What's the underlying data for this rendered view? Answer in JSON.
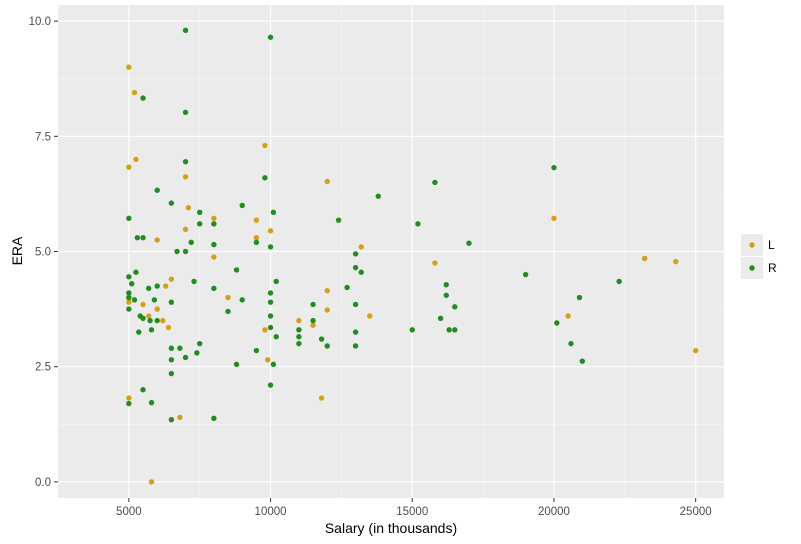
{
  "chart_data": {
    "type": "scatter",
    "xlabel": "Salary (in thousands)",
    "ylabel": "ERA",
    "xlim": [
      2500,
      26000
    ],
    "ylim": [
      -0.35,
      10.35
    ],
    "x_ticks": [
      5000,
      10000,
      15000,
      20000,
      25000
    ],
    "x_tick_labels": [
      "5000",
      "10000",
      "15000",
      "20000",
      "25000"
    ],
    "y_ticks": [
      0,
      2.5,
      5,
      7.5,
      10
    ],
    "y_tick_labels": [
      "0.0",
      "2.5",
      "5.0",
      "7.5",
      "10.0"
    ],
    "grid": true,
    "legend_position": "right",
    "series": [
      {
        "name": "L",
        "color": "#d4a017",
        "points": [
          [
            5000,
            9.0
          ],
          [
            5000,
            6.83
          ],
          [
            5000,
            4.0
          ],
          [
            5000,
            3.9
          ],
          [
            5000,
            1.82
          ],
          [
            5200,
            8.45
          ],
          [
            5250,
            7.0
          ],
          [
            5500,
            3.85
          ],
          [
            5700,
            3.6
          ],
          [
            5800,
            0.0
          ],
          [
            6000,
            5.25
          ],
          [
            6000,
            3.75
          ],
          [
            6200,
            3.5
          ],
          [
            6300,
            4.25
          ],
          [
            6400,
            3.35
          ],
          [
            6500,
            4.4
          ],
          [
            6800,
            1.4
          ],
          [
            7000,
            6.62
          ],
          [
            7000,
            5.48
          ],
          [
            7100,
            5.95
          ],
          [
            8000,
            5.72
          ],
          [
            8000,
            5.6
          ],
          [
            8000,
            4.88
          ],
          [
            8500,
            4.0
          ],
          [
            9500,
            5.68
          ],
          [
            9500,
            5.3
          ],
          [
            9800,
            7.3
          ],
          [
            9800,
            3.3
          ],
          [
            9900,
            2.65
          ],
          [
            10000,
            5.45
          ],
          [
            11000,
            3.5
          ],
          [
            11500,
            3.4
          ],
          [
            11800,
            1.82
          ],
          [
            12000,
            6.52
          ],
          [
            12000,
            4.15
          ],
          [
            12000,
            3.73
          ],
          [
            13200,
            5.1
          ],
          [
            13500,
            3.6
          ],
          [
            15800,
            4.75
          ],
          [
            20000,
            5.72
          ],
          [
            20500,
            3.6
          ],
          [
            23200,
            4.85
          ],
          [
            24300,
            4.78
          ],
          [
            25000,
            2.85
          ]
        ]
      },
      {
        "name": "R",
        "color": "#228b22",
        "points": [
          [
            5000,
            5.72
          ],
          [
            5000,
            4.45
          ],
          [
            5000,
            4.1
          ],
          [
            5000,
            4.0
          ],
          [
            5000,
            3.75
          ],
          [
            5000,
            1.7
          ],
          [
            5100,
            4.3
          ],
          [
            5200,
            3.95
          ],
          [
            5250,
            4.55
          ],
          [
            5300,
            5.3
          ],
          [
            5350,
            3.25
          ],
          [
            5400,
            3.6
          ],
          [
            5500,
            8.33
          ],
          [
            5500,
            5.3
          ],
          [
            5500,
            3.55
          ],
          [
            5500,
            2.0
          ],
          [
            5700,
            4.2
          ],
          [
            5750,
            3.5
          ],
          [
            5800,
            3.3
          ],
          [
            5800,
            1.72
          ],
          [
            5900,
            3.95
          ],
          [
            6000,
            6.33
          ],
          [
            6000,
            4.25
          ],
          [
            6000,
            3.5
          ],
          [
            6500,
            6.05
          ],
          [
            6500,
            3.9
          ],
          [
            6500,
            2.9
          ],
          [
            6500,
            2.65
          ],
          [
            6500,
            2.35
          ],
          [
            6500,
            1.35
          ],
          [
            6700,
            5.0
          ],
          [
            6800,
            2.9
          ],
          [
            7000,
            9.8
          ],
          [
            7000,
            8.02
          ],
          [
            7000,
            6.95
          ],
          [
            7000,
            5.0
          ],
          [
            7000,
            2.7
          ],
          [
            7200,
            5.2
          ],
          [
            7300,
            4.35
          ],
          [
            7400,
            2.8
          ],
          [
            7500,
            5.85
          ],
          [
            7500,
            5.6
          ],
          [
            7500,
            3.0
          ],
          [
            8000,
            5.6
          ],
          [
            8000,
            5.15
          ],
          [
            8000,
            4.2
          ],
          [
            8000,
            1.38
          ],
          [
            8500,
            3.7
          ],
          [
            8800,
            4.6
          ],
          [
            8800,
            2.55
          ],
          [
            9000,
            6.0
          ],
          [
            9000,
            3.95
          ],
          [
            9500,
            5.2
          ],
          [
            9500,
            2.85
          ],
          [
            9800,
            6.6
          ],
          [
            10000,
            9.65
          ],
          [
            10000,
            5.1
          ],
          [
            10000,
            4.1
          ],
          [
            10000,
            3.9
          ],
          [
            10000,
            3.6
          ],
          [
            10000,
            3.35
          ],
          [
            10000,
            2.1
          ],
          [
            10100,
            5.85
          ],
          [
            10100,
            2.55
          ],
          [
            10200,
            4.35
          ],
          [
            10200,
            3.15
          ],
          [
            11000,
            3.3
          ],
          [
            11000,
            3.15
          ],
          [
            11000,
            3.0
          ],
          [
            11500,
            3.85
          ],
          [
            11500,
            3.5
          ],
          [
            11800,
            3.1
          ],
          [
            12000,
            2.95
          ],
          [
            12400,
            5.68
          ],
          [
            12700,
            4.22
          ],
          [
            13000,
            4.65
          ],
          [
            13000,
            4.95
          ],
          [
            13000,
            3.85
          ],
          [
            13000,
            3.25
          ],
          [
            13000,
            2.95
          ],
          [
            13200,
            4.55
          ],
          [
            13800,
            6.2
          ],
          [
            15000,
            3.3
          ],
          [
            15200,
            5.6
          ],
          [
            15800,
            6.5
          ],
          [
            16000,
            3.55
          ],
          [
            16200,
            4.28
          ],
          [
            16200,
            4.05
          ],
          [
            16300,
            3.3
          ],
          [
            16500,
            3.8
          ],
          [
            16500,
            3.3
          ],
          [
            17000,
            5.18
          ],
          [
            19000,
            4.5
          ],
          [
            20000,
            6.82
          ],
          [
            20100,
            3.45
          ],
          [
            20600,
            3.0
          ],
          [
            20900,
            4.0
          ],
          [
            21000,
            2.62
          ],
          [
            22300,
            4.35
          ]
        ]
      }
    ]
  }
}
